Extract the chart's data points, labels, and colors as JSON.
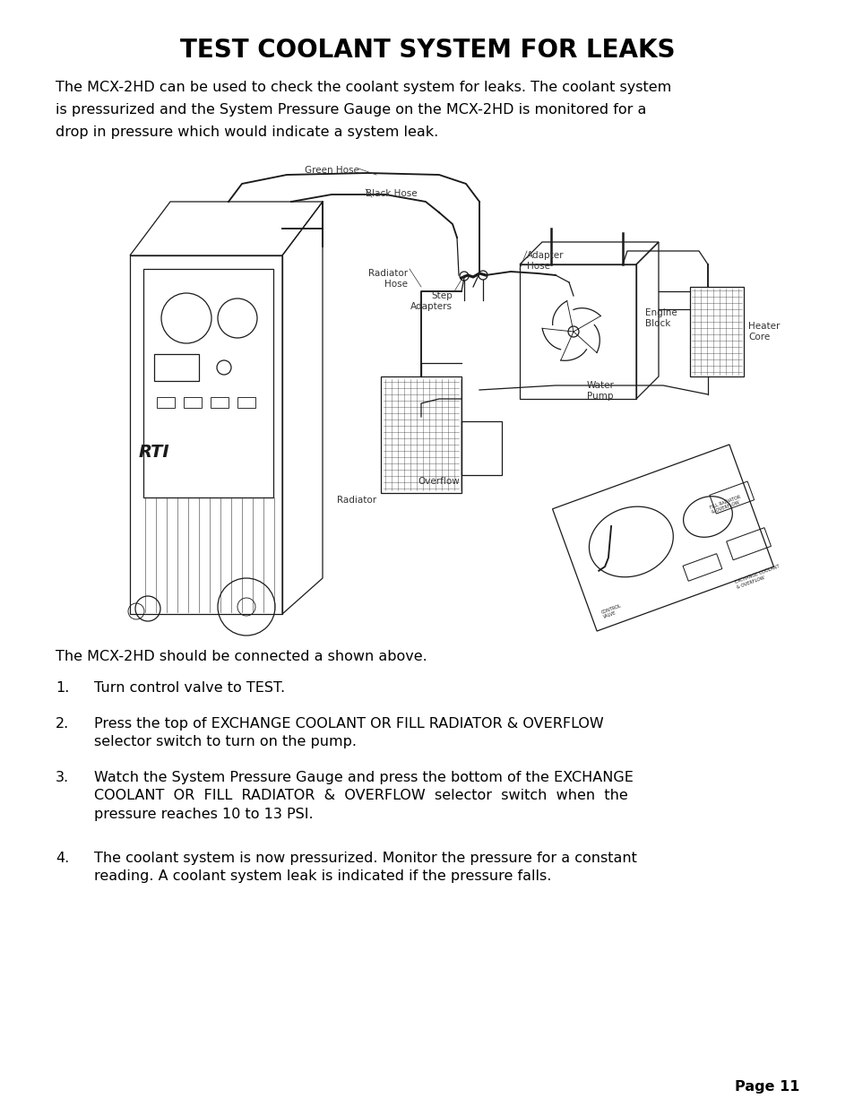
{
  "title": "TEST COOLANT SYSTEM FOR LEAKS",
  "intro_line1": "The MCX-2HD can be used to check the coolant system for leaks. The coolant system",
  "intro_line2": "is pressurized and the System Pressure Gauge on the MCX-2HD is monitored for a",
  "intro_line3": "drop in pressure which would indicate a system leak.",
  "connected_text": "The MCX-2HD should be connected a shown above.",
  "step1": "Turn control valve to TEST.",
  "step2_l1": "Press the top of EXCHANGE COOLANT OR FILL RADIATOR & OVERFLOW",
  "step2_l2": "selector switch to turn on the pump.",
  "step3_l1": "Watch the System Pressure Gauge and press the bottom of the EXCHANGE",
  "step3_l2": "COOLANT  OR  FILL  RADIATOR  &  OVERFLOW  selector  switch  when  the",
  "step3_l3": "pressure reaches 10 to 13 PSI.",
  "step4_l1": "The coolant system is now pressurized. Monitor the pressure for a constant",
  "step4_l2": "reading. A coolant system leak is indicated if the pressure falls.",
  "page_number": "Page 11",
  "bg_color": "#ffffff",
  "text_color": "#000000",
  "title_fontsize": 20,
  "body_fontsize": 11.5,
  "small_fontsize": 8.5,
  "label_fontsize": 7.5
}
